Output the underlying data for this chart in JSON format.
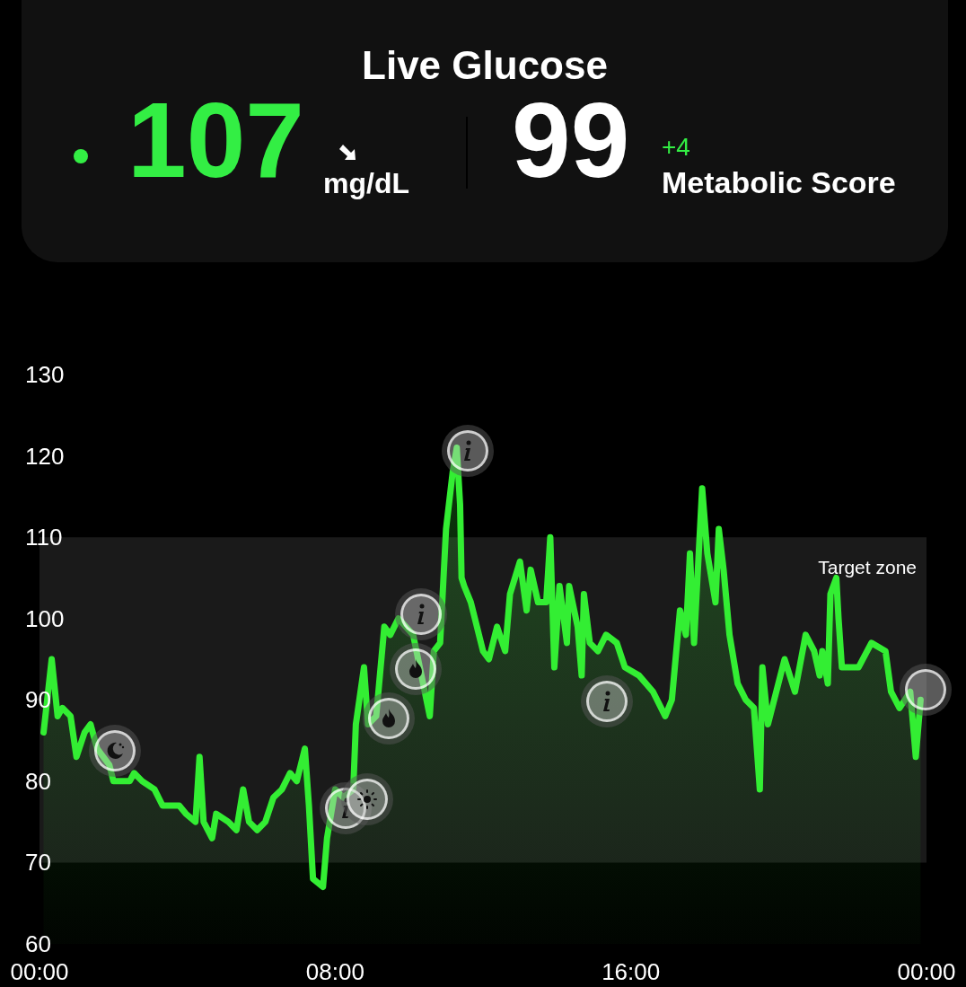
{
  "chart_data": {
    "type": "area",
    "title": "Live Glucose",
    "annotations": [
      "107",
      "mg/dL",
      "99",
      "+4",
      "Metabolic Score"
    ],
    "x": [
      0.11,
      0.33,
      0.49,
      0.62,
      0.84,
      1.0,
      1.22,
      1.38,
      1.56,
      1.89,
      2.0,
      2.44,
      2.56,
      2.78,
      3.11,
      3.33,
      3.78,
      3.96,
      4.22,
      4.33,
      4.44,
      4.67,
      4.78,
      5.11,
      5.33,
      5.51,
      5.67,
      5.89,
      6.11,
      6.33,
      6.56,
      6.78,
      6.96,
      7.07,
      7.18,
      7.29,
      7.4,
      7.67,
      7.78,
      8.0,
      8.22,
      8.49,
      8.56,
      8.78,
      8.89,
      9.11,
      9.33,
      9.49,
      9.71,
      10.11,
      10.56,
      10.67,
      10.84,
      11.0,
      11.18,
      11.29,
      11.38,
      11.42,
      11.49,
      11.67,
      11.78,
      12.0,
      12.16,
      12.38,
      12.6,
      12.73,
      13.0,
      13.18,
      13.29,
      13.49,
      13.71,
      13.82,
      13.93,
      14.07,
      14.27,
      14.33,
      14.56,
      14.67,
      14.73,
      14.89,
      15.11,
      15.33,
      15.62,
      15.84,
      16.22,
      16.6,
      16.93,
      17.11,
      17.33,
      17.49,
      17.6,
      17.71,
      17.93,
      18.07,
      18.29,
      18.38,
      18.51,
      18.67,
      18.89,
      19.11,
      19.33,
      19.49,
      19.56,
      19.71,
      20.16,
      20.44,
      20.73,
      20.96,
      21.11,
      21.18,
      21.33,
      21.4,
      21.56,
      21.62,
      21.71,
      22.16,
      22.51,
      22.89,
      23.04,
      23.27,
      23.56,
      23.71,
      23.84
    ],
    "series": [
      {
        "color": "#33ee33",
        "values": [
          86,
          95,
          88,
          89,
          88,
          83,
          86,
          87,
          84,
          82,
          80,
          80,
          81,
          80,
          79,
          77,
          77,
          76,
          75,
          83,
          75,
          73,
          76,
          75,
          74,
          79,
          75,
          74,
          75,
          78,
          79,
          81,
          80,
          82,
          84,
          77,
          68,
          67,
          73,
          79,
          78,
          79,
          87,
          94,
          87,
          88,
          99,
          98,
          100,
          98,
          88,
          96,
          97,
          111,
          118,
          121,
          114,
          105,
          104,
          102,
          100,
          96,
          95,
          99,
          96,
          103,
          107,
          101,
          106,
          102,
          102,
          110,
          94,
          104,
          97,
          104,
          99,
          93,
          103,
          97,
          96,
          98,
          97,
          94,
          93,
          91,
          88,
          90,
          101,
          98,
          108,
          97,
          116,
          108,
          102,
          111,
          106,
          98,
          92,
          90,
          89,
          79,
          94,
          87,
          95,
          91,
          98,
          96,
          93,
          96,
          92,
          103,
          105,
          100,
          94,
          94,
          97,
          96,
          91,
          89,
          91,
          83,
          90
        ]
      }
    ],
    "xlim": [
      0,
      24
    ],
    "xticks": [
      {
        "value": 0,
        "label": "00:00"
      },
      {
        "value": 8,
        "label": "08:00"
      },
      {
        "value": 16,
        "label": "16:00"
      },
      {
        "value": 24,
        "label": "00:00"
      }
    ],
    "ylim": [
      60,
      130
    ],
    "yticks": [
      60,
      70,
      80,
      90,
      100,
      110,
      120,
      130
    ],
    "bands": [
      {
        "axis": "y",
        "from": 70,
        "to": 110,
        "label": "Target zone",
        "color": "#1a1a1a"
      }
    ],
    "grid": false,
    "marker": "none",
    "line_style": "solid"
  }
}
